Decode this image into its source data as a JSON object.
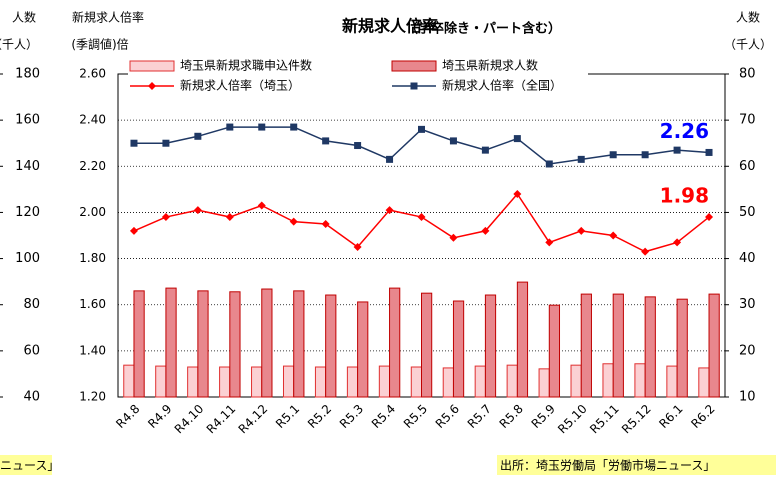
{
  "chart_data": {
    "type": "combo",
    "title": "新規求人倍率",
    "subtitle": "（学卒除き・パート含む）",
    "y_label": [
      "新規求人倍率",
      "(季調値)倍"
    ],
    "y2_label": [
      "人数",
      "（千人）"
    ],
    "y3_label": [
      "人数",
      "（千人）"
    ],
    "categories": [
      "R4.8",
      "R4.9",
      "R4.10",
      "R4.11",
      "R4.12",
      "R5.1",
      "R5.2",
      "R5.3",
      "R5.4",
      "R5.5",
      "R5.6",
      "R5.7",
      "R5.8",
      "R5.9",
      "R5.10",
      "R5.11",
      "R5.12",
      "R6.1",
      "R6.2"
    ],
    "series": [
      {
        "name": "埼玉県新規求職申込件数",
        "type": "bar",
        "axis": "y2",
        "color": "#fbd0d3",
        "stroke": "#e03030",
        "values": [
          16.9,
          16.7,
          16.5,
          16.5,
          16.5,
          16.7,
          16.5,
          16.5,
          16.7,
          16.5,
          16.3,
          16.7,
          16.9,
          16.1,
          16.9,
          17.2,
          17.2,
          16.7,
          16.3
        ]
      },
      {
        "name": "埼玉県新規求人数",
        "type": "bar",
        "axis": "y2",
        "color": "#e8878d",
        "stroke": "#c00000",
        "values": [
          33.0,
          33.6,
          33.0,
          32.8,
          33.4,
          33.0,
          32.1,
          30.6,
          33.6,
          32.5,
          30.8,
          32.1,
          34.9,
          29.9,
          32.3,
          32.3,
          31.7,
          31.2,
          32.3
        ]
      },
      {
        "name": "新規求人倍率（埼玉）",
        "type": "line",
        "color": "#ff0000",
        "marker": "diamond",
        "values": [
          1.92,
          1.98,
          2.01,
          1.98,
          2.03,
          1.96,
          1.95,
          1.85,
          2.01,
          1.98,
          1.89,
          1.92,
          2.08,
          1.87,
          1.92,
          1.9,
          1.83,
          1.87,
          1.98
        ]
      },
      {
        "name": "新規求人倍率（全国）",
        "type": "line",
        "color": "#1f3864",
        "label_color": "#0000ff",
        "marker": "square",
        "values": [
          2.3,
          2.3,
          2.33,
          2.37,
          2.37,
          2.37,
          2.31,
          2.29,
          2.23,
          2.36,
          2.31,
          2.27,
          2.32,
          2.21,
          2.23,
          2.25,
          2.25,
          2.27,
          2.26
        ]
      }
    ],
    "ylim": [
      1.2,
      2.6
    ],
    "yticks": [
      {
        "value": 1.2,
        "label": "1.20"
      },
      {
        "value": 1.4,
        "label": "1.40"
      },
      {
        "value": 1.6,
        "label": "1.60"
      },
      {
        "value": 1.8,
        "label": "1.80"
      },
      {
        "value": 2.0,
        "label": "2.00"
      },
      {
        "value": 2.2,
        "label": "2.20"
      },
      {
        "value": 2.4,
        "label": "2.40"
      },
      {
        "value": 2.6,
        "label": "2.60"
      }
    ],
    "y2lim": [
      10,
      80
    ],
    "y2ticks": [
      10,
      20,
      30,
      40,
      50,
      60,
      70,
      80
    ],
    "y3lim": [
      40,
      180
    ],
    "y3ticks": [
      40,
      60,
      80,
      100,
      120,
      140,
      160,
      180
    ],
    "grid": true,
    "notes": [
      "ニュース」",
      "出所：埼玉労働局「労働市場ニュース」"
    ]
  }
}
